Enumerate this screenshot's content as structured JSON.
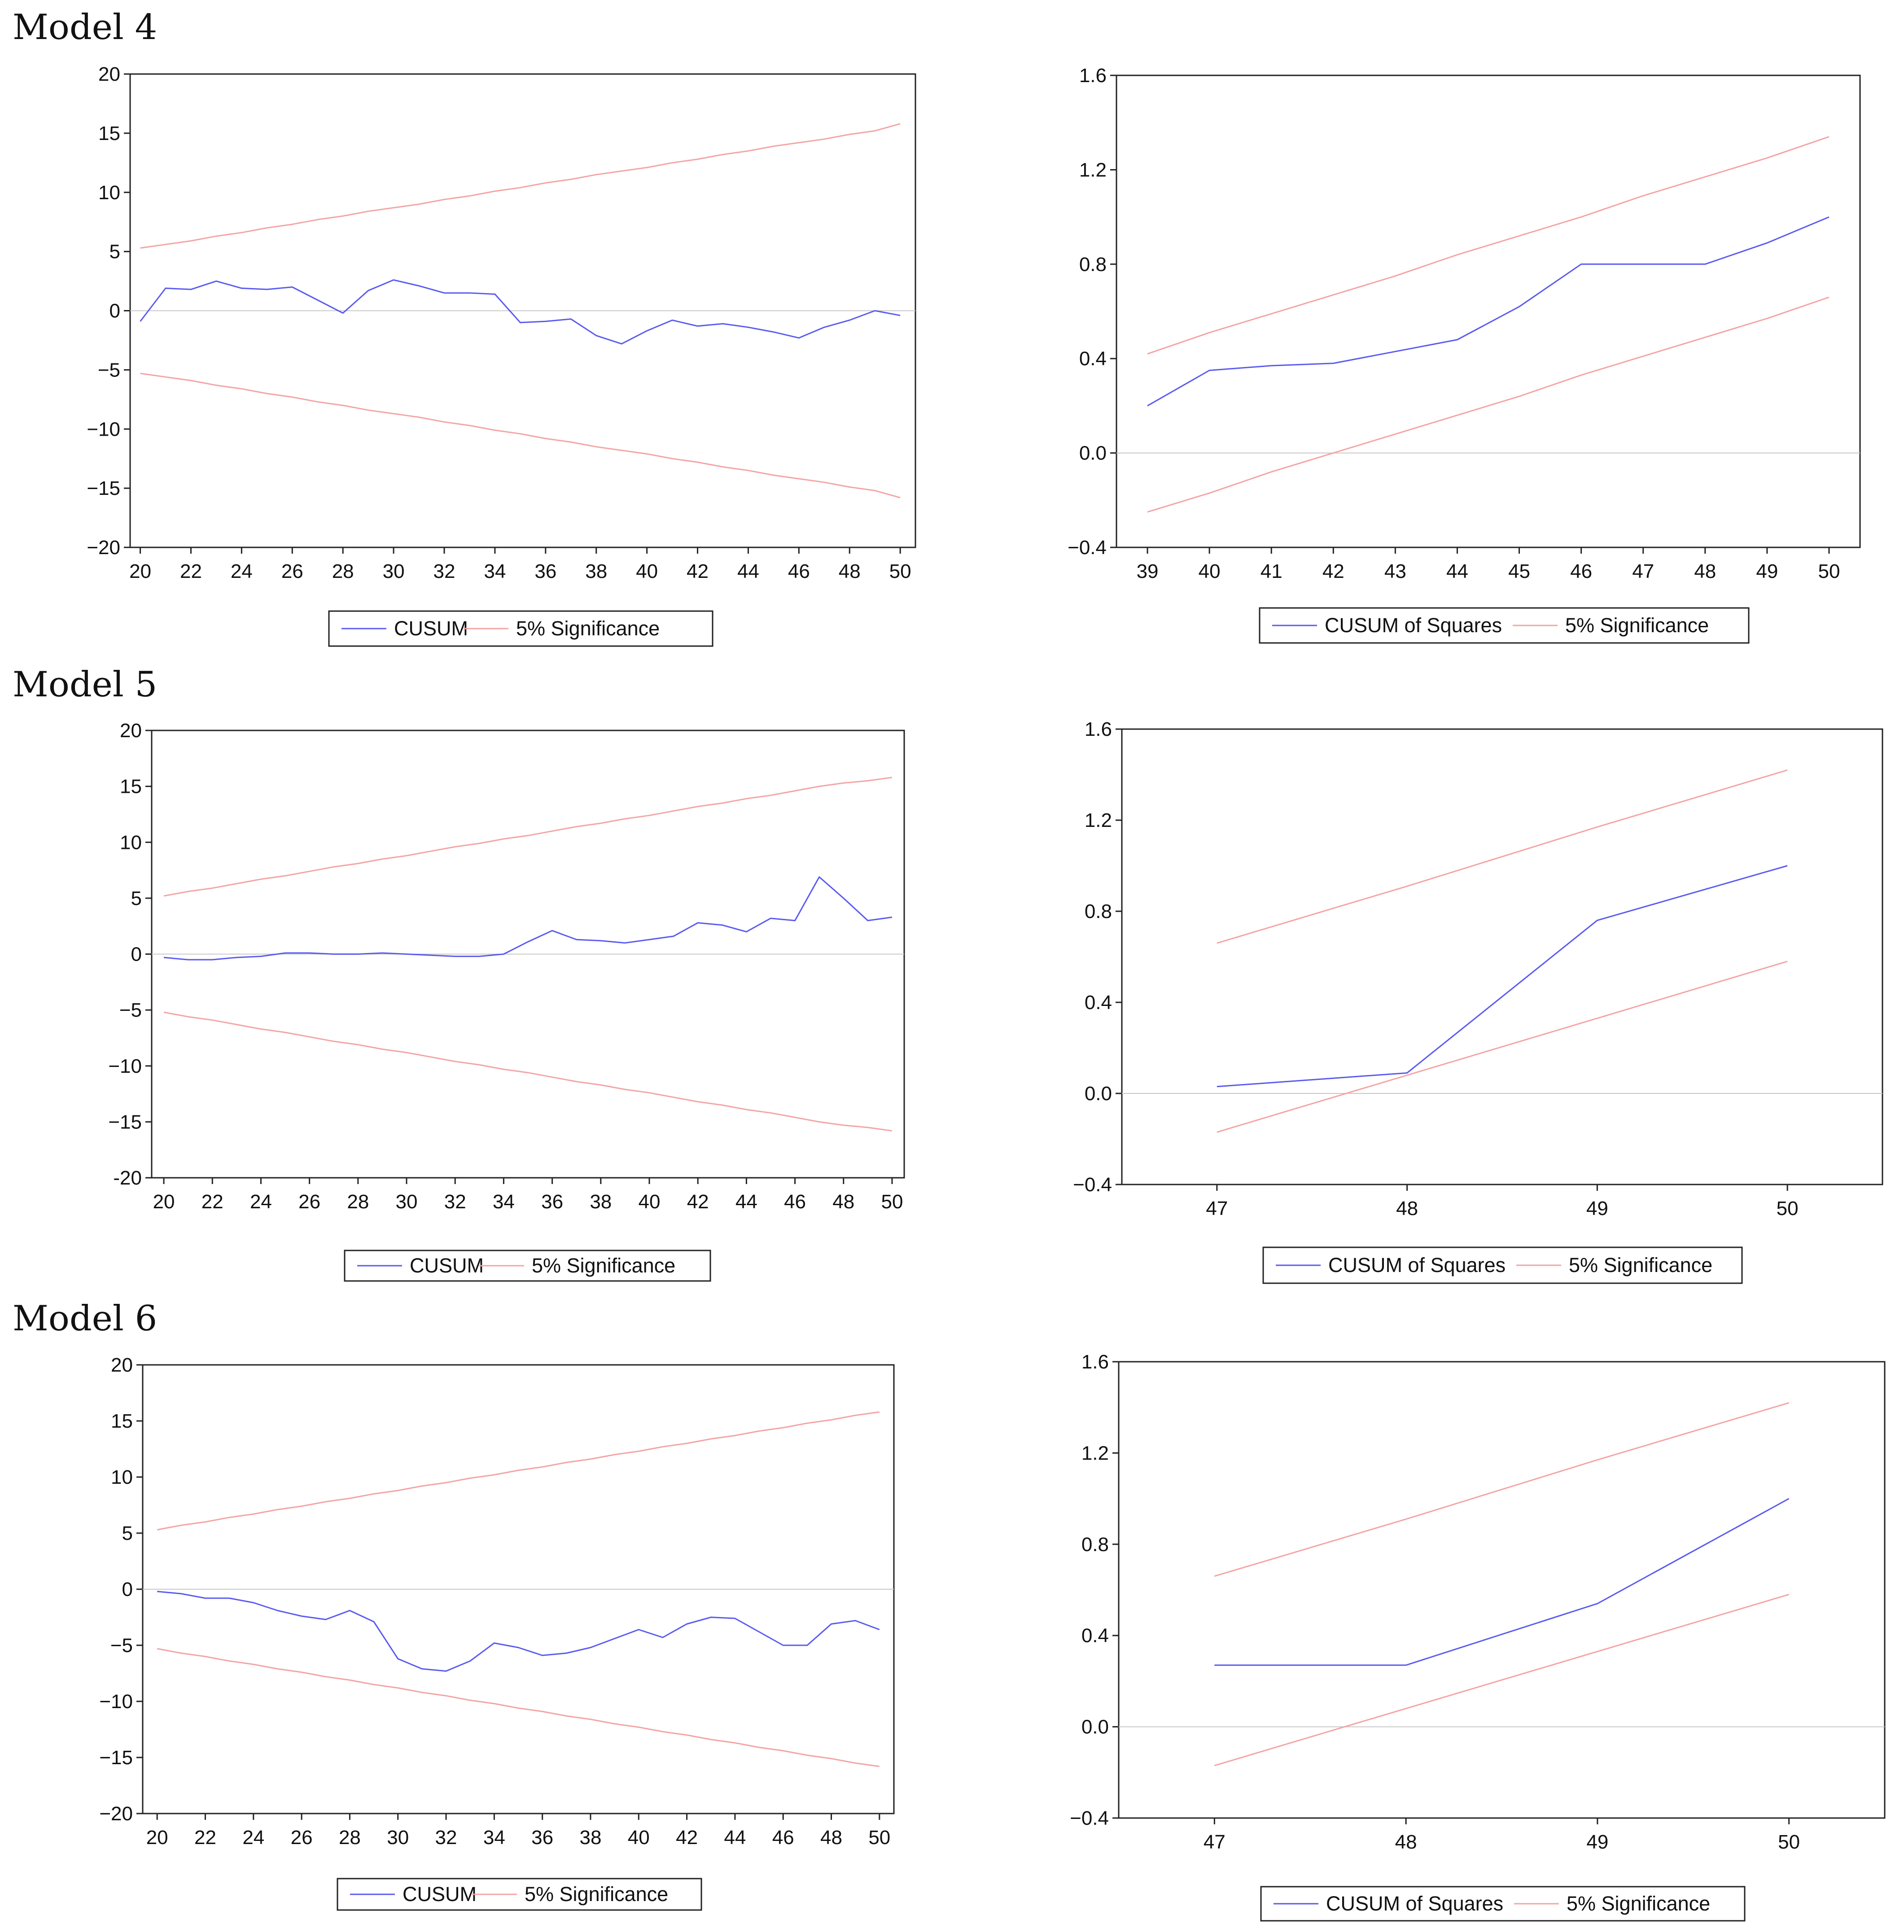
{
  "models": [
    {
      "title": "Model 4"
    },
    {
      "title": "Model 5"
    },
    {
      "title": "Model 6"
    }
  ],
  "colors": {
    "cusum": "#5a5af0",
    "significance": "#f4a4a4",
    "zero": "#c8c8c8",
    "frame": "#222222"
  },
  "chart_data": [
    {
      "type": "line",
      "model": "Model 4",
      "x": [
        20,
        21,
        22,
        23,
        24,
        25,
        26,
        27,
        28,
        29,
        30,
        31,
        32,
        33,
        34,
        35,
        36,
        37,
        38,
        39,
        40,
        41,
        42,
        43,
        44,
        45,
        46,
        47,
        48,
        49,
        50
      ],
      "xticks": [
        20,
        22,
        24,
        26,
        28,
        30,
        32,
        34,
        36,
        38,
        40,
        42,
        44,
        46,
        48,
        50
      ],
      "yticks": [
        20,
        15,
        10,
        5,
        0,
        -5,
        -10,
        -15,
        -20
      ],
      "ytick_labels": [
        "20",
        "15",
        "10",
        "5",
        "0",
        "−5",
        "−10",
        "−15",
        "−20"
      ],
      "ylim": [
        -20,
        20
      ],
      "xlim": [
        19.6,
        50.6
      ],
      "grid": false,
      "legend_position": "bottom",
      "series": [
        {
          "name": "CUSUM",
          "values": [
            -0.9,
            1.9,
            1.8,
            2.5,
            1.9,
            1.8,
            2.0,
            0.9,
            -0.2,
            1.7,
            2.6,
            2.1,
            1.5,
            1.5,
            1.4,
            -1.0,
            -0.9,
            -0.7,
            -2.1,
            -2.8,
            -1.7,
            -0.8,
            -1.3,
            -1.1,
            -1.4,
            -1.8,
            -2.3,
            -1.4,
            -0.8,
            0.0,
            -0.4
          ]
        },
        {
          "name": "5% Significance",
          "values": [
            5.3,
            5.6,
            5.9,
            6.3,
            6.6,
            7.0,
            7.3,
            7.7,
            8.0,
            8.4,
            8.7,
            9.0,
            9.4,
            9.7,
            10.1,
            10.4,
            10.8,
            11.1,
            11.5,
            11.8,
            12.1,
            12.5,
            12.8,
            13.2,
            13.5,
            13.9,
            14.2,
            14.5,
            14.9,
            15.2,
            15.8
          ]
        },
        {
          "name": "5% Significance",
          "values": [
            -5.3,
            -5.6,
            -5.9,
            -6.3,
            -6.6,
            -7.0,
            -7.3,
            -7.7,
            -8.0,
            -8.4,
            -8.7,
            -9.0,
            -9.4,
            -9.7,
            -10.1,
            -10.4,
            -10.8,
            -11.1,
            -11.5,
            -11.8,
            -12.1,
            -12.5,
            -12.8,
            -13.2,
            -13.5,
            -13.9,
            -14.2,
            -14.5,
            -14.9,
            -15.2,
            -15.8
          ]
        }
      ],
      "legend": [
        "CUSUM",
        "5% Significance"
      ]
    },
    {
      "type": "line",
      "model": "Model 4",
      "x": [
        39,
        40,
        41,
        42,
        43,
        44,
        45,
        46,
        47,
        48,
        49,
        50
      ],
      "xticks": [
        39,
        40,
        41,
        42,
        43,
        44,
        45,
        46,
        47,
        48,
        49,
        50
      ],
      "yticks": [
        1.6,
        1.2,
        0.8,
        0.4,
        0.0,
        -0.4
      ],
      "ytick_labels": [
        "1.6",
        "1.2",
        "0.8",
        "0.4",
        "0.0",
        "−0.4"
      ],
      "ylim": [
        -0.4,
        1.6
      ],
      "xlim": [
        38.5,
        50.5
      ],
      "grid": false,
      "legend_position": "bottom",
      "series": [
        {
          "name": "CUSUM of Squares",
          "values": [
            0.2,
            0.35,
            0.37,
            0.38,
            0.43,
            0.48,
            0.62,
            0.8,
            0.8,
            0.8,
            0.89,
            1.0
          ]
        },
        {
          "name": "5% Significance",
          "values": [
            0.42,
            0.51,
            0.59,
            0.67,
            0.75,
            0.84,
            0.92,
            1.0,
            1.09,
            1.17,
            1.25,
            1.34
          ]
        },
        {
          "name": "5% Significance",
          "values": [
            -0.25,
            -0.17,
            -0.08,
            0.0,
            0.08,
            0.16,
            0.24,
            0.33,
            0.41,
            0.49,
            0.57,
            0.66
          ]
        }
      ],
      "legend": [
        "CUSUM of Squares",
        "5% Significance"
      ]
    },
    {
      "type": "line",
      "model": "Model 5",
      "x": [
        20,
        21,
        22,
        23,
        24,
        25,
        26,
        27,
        28,
        29,
        30,
        31,
        32,
        33,
        34,
        35,
        36,
        37,
        38,
        39,
        40,
        41,
        42,
        43,
        44,
        45,
        46,
        47,
        48,
        49,
        50
      ],
      "xticks": [
        20,
        22,
        24,
        26,
        28,
        30,
        32,
        34,
        36,
        38,
        40,
        42,
        44,
        46,
        48,
        50
      ],
      "yticks": [
        20,
        15,
        10,
        5,
        0,
        -5,
        -10,
        -15,
        -20
      ],
      "ytick_labels": [
        "20",
        "15",
        "10",
        "5",
        "0",
        "−5",
        "−10",
        "−15",
        "-20"
      ],
      "ylim": [
        -20,
        20
      ],
      "xlim": [
        19.5,
        50.5
      ],
      "grid": false,
      "legend_position": "bottom",
      "series": [
        {
          "name": "CUSUM",
          "values": [
            -0.3,
            -0.5,
            -0.5,
            -0.3,
            -0.2,
            0.1,
            0.1,
            0.0,
            0.0,
            0.1,
            0.0,
            -0.1,
            -0.2,
            -0.2,
            0.0,
            1.1,
            2.1,
            1.3,
            1.2,
            1.0,
            1.3,
            1.6,
            2.8,
            2.6,
            2.0,
            3.2,
            3.0,
            6.9,
            5.0,
            3.0,
            3.3
          ]
        },
        {
          "name": "5% Significance",
          "values": [
            5.2,
            5.6,
            5.9,
            6.3,
            6.7,
            7.0,
            7.4,
            7.8,
            8.1,
            8.5,
            8.8,
            9.2,
            9.6,
            9.9,
            10.3,
            10.6,
            11.0,
            11.4,
            11.7,
            12.1,
            12.4,
            12.8,
            13.2,
            13.5,
            13.9,
            14.2,
            14.6,
            15.0,
            15.3,
            15.5,
            15.8
          ]
        },
        {
          "name": "5% Significance",
          "values": [
            -5.2,
            -5.6,
            -5.9,
            -6.3,
            -6.7,
            -7.0,
            -7.4,
            -7.8,
            -8.1,
            -8.5,
            -8.8,
            -9.2,
            -9.6,
            -9.9,
            -10.3,
            -10.6,
            -11.0,
            -11.4,
            -11.7,
            -12.1,
            -12.4,
            -12.8,
            -13.2,
            -13.5,
            -13.9,
            -14.2,
            -14.6,
            -15.0,
            -15.3,
            -15.5,
            -15.8
          ]
        }
      ],
      "legend": [
        "CUSUM",
        "5% Significance"
      ]
    },
    {
      "type": "line",
      "model": "Model 5",
      "x": [
        47,
        48,
        49,
        50
      ],
      "xticks": [
        47,
        48,
        49,
        50
      ],
      "yticks": [
        1.6,
        1.2,
        0.8,
        0.4,
        0.0,
        -0.4
      ],
      "ytick_labels": [
        "1.6",
        "1.2",
        "0.8",
        "0.4",
        "0.0",
        "−0.4"
      ],
      "ylim": [
        -0.4,
        1.6
      ],
      "xlim": [
        46.5,
        50.5
      ],
      "grid": false,
      "legend_position": "bottom",
      "series": [
        {
          "name": "CUSUM of Squares",
          "values": [
            0.03,
            0.09,
            0.76,
            1.0
          ]
        },
        {
          "name": "5% Significance",
          "values": [
            0.66,
            0.91,
            1.17,
            1.42
          ]
        },
        {
          "name": "5% Significance",
          "values": [
            -0.17,
            0.08,
            0.33,
            0.58
          ]
        }
      ],
      "legend": [
        "CUSUM of Squares",
        "5% Significance"
      ]
    },
    {
      "type": "line",
      "model": "Model 6",
      "x": [
        20,
        21,
        22,
        23,
        24,
        25,
        26,
        27,
        28,
        29,
        30,
        31,
        32,
        33,
        34,
        35,
        36,
        37,
        38,
        39,
        40,
        41,
        42,
        43,
        44,
        45,
        46,
        47,
        48,
        49,
        50
      ],
      "xticks": [
        20,
        22,
        24,
        26,
        28,
        30,
        32,
        34,
        36,
        38,
        40,
        42,
        44,
        46,
        48,
        50
      ],
      "yticks": [
        20,
        15,
        10,
        5,
        0,
        -5,
        -10,
        -15,
        -20
      ],
      "ytick_labels": [
        "20",
        "15",
        "10",
        "5",
        "0",
        "−5",
        "−10",
        "−15",
        "−20"
      ],
      "ylim": [
        -20,
        20
      ],
      "xlim": [
        19.4,
        50.6
      ],
      "grid": false,
      "legend_position": "bottom",
      "series": [
        {
          "name": "CUSUM",
          "values": [
            -0.2,
            -0.4,
            -0.8,
            -0.8,
            -1.2,
            -1.9,
            -2.4,
            -2.7,
            -1.9,
            -2.9,
            -6.2,
            -7.1,
            -7.3,
            -6.4,
            -4.8,
            -5.2,
            -5.9,
            -5.7,
            -5.2,
            -4.4,
            -3.6,
            -4.3,
            -3.1,
            -2.5,
            -2.6,
            -3.8,
            -5.0,
            -5.0,
            -3.1,
            -2.8,
            -3.6
          ]
        },
        {
          "name": "5% Significance",
          "values": [
            5.3,
            5.7,
            6.0,
            6.4,
            6.7,
            7.1,
            7.4,
            7.8,
            8.1,
            8.5,
            8.8,
            9.2,
            9.5,
            9.9,
            10.2,
            10.6,
            10.9,
            11.3,
            11.6,
            12.0,
            12.3,
            12.7,
            13.0,
            13.4,
            13.7,
            14.1,
            14.4,
            14.8,
            15.1,
            15.5,
            15.8
          ]
        },
        {
          "name": "5% Significance",
          "values": [
            -5.3,
            -5.7,
            -6.0,
            -6.4,
            -6.7,
            -7.1,
            -7.4,
            -7.8,
            -8.1,
            -8.5,
            -8.8,
            -9.2,
            -9.5,
            -9.9,
            -10.2,
            -10.6,
            -10.9,
            -11.3,
            -11.6,
            -12.0,
            -12.3,
            -12.7,
            -13.0,
            -13.4,
            -13.7,
            -14.1,
            -14.4,
            -14.8,
            -15.1,
            -15.5,
            -15.8
          ]
        }
      ],
      "legend": [
        "CUSUM",
        "5% Significance"
      ]
    },
    {
      "type": "line",
      "model": "Model 6",
      "x": [
        47,
        48,
        49,
        50
      ],
      "xticks": [
        47,
        48,
        49,
        50
      ],
      "yticks": [
        1.6,
        1.2,
        0.8,
        0.4,
        0.0,
        -0.4
      ],
      "ytick_labels": [
        "1.6",
        "1.2",
        "0.8",
        "0.4",
        "0.0",
        "−0.4"
      ],
      "ylim": [
        -0.4,
        1.6
      ],
      "xlim": [
        46.5,
        50.5
      ],
      "grid": false,
      "legend_position": "bottom",
      "series": [
        {
          "name": "CUSUM of Squares",
          "values": [
            0.27,
            0.27,
            0.54,
            1.0
          ]
        },
        {
          "name": "5% Significance",
          "values": [
            0.66,
            0.91,
            1.17,
            1.42
          ]
        },
        {
          "name": "5% Significance",
          "values": [
            -0.17,
            0.08,
            0.33,
            0.58
          ]
        }
      ],
      "legend": [
        "CUSUM of Squares",
        "5% Significance"
      ]
    }
  ]
}
